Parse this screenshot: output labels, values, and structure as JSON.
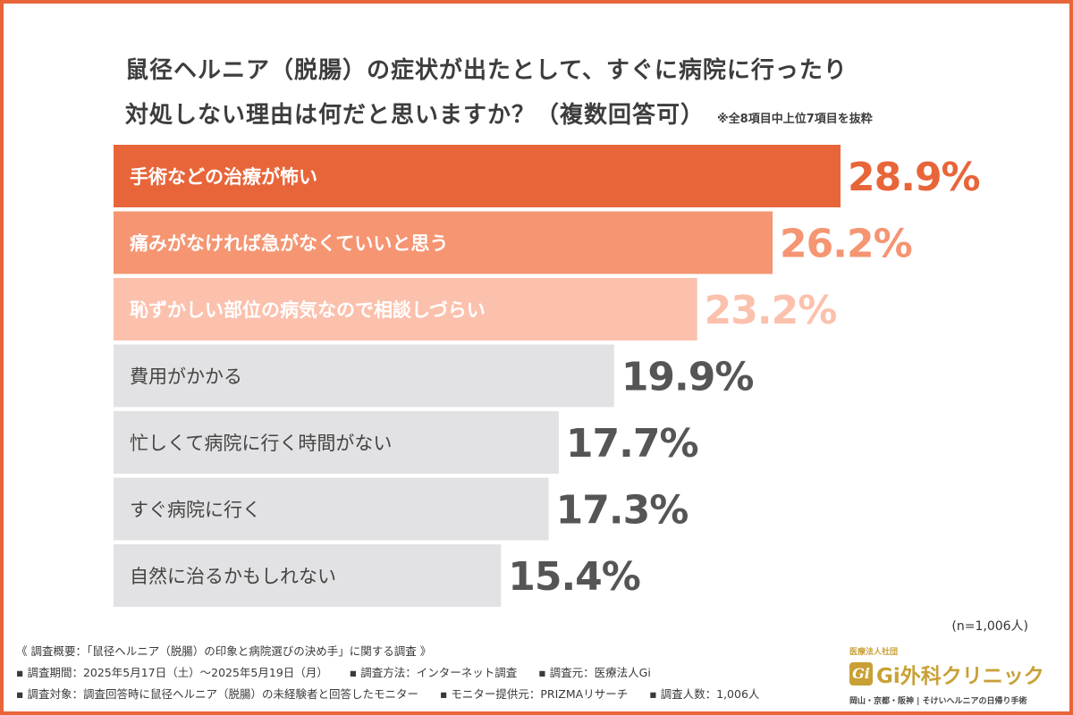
{
  "title": {
    "line1": "鼠径ヘルニア（脱腸）の症状が出たとして、すぐに病院に行ったり",
    "line2": "対処しない理由は何だと思いますか？（複数回答可）",
    "note": "※全8項目中上位7項目を抜粋"
  },
  "chart_data": {
    "type": "bar",
    "orientation": "horizontal",
    "categories": [
      "手術などの治療が怖い",
      "痛みがなければ急がなくていいと思う",
      "恥ずかしい部位の病気なので相談しづらい",
      "費用がかかる",
      "忙しくて病院に行く時間がない",
      "すぐ病院に行く",
      "自然に治るかもしれない"
    ],
    "values": [
      28.9,
      26.2,
      23.2,
      19.9,
      17.7,
      17.3,
      15.4
    ],
    "value_labels": [
      "28.9%",
      "26.2%",
      "23.2%",
      "19.9%",
      "17.7%",
      "17.3%",
      "15.4%"
    ],
    "bar_colors": [
      "#e8653a",
      "#f59572",
      "#fbc1ad",
      "#e2e2e4",
      "#e2e2e4",
      "#e2e2e4",
      "#e2e2e4"
    ],
    "label_colors": [
      "#ffffff",
      "#ffffff",
      "#ffffff",
      "#444444",
      "#444444",
      "#444444",
      "#444444"
    ],
    "value_colors": [
      "#e8653a",
      "#f59572",
      "#fbc1ad",
      "#555555",
      "#555555",
      "#555555",
      "#555555"
    ],
    "unit": "%"
  },
  "sample": "(n=1,006人)",
  "footer": {
    "line1": "《 調査概要：「鼠径ヘルニア（脱腸）の印象と病院選びの決め手」に関する調査 》",
    "period": "▪ 調査期間：2025年5月17日（土）〜2025年5月19日（月）",
    "method": "▪ 調査方法：インターネット調査",
    "source": "▪ 調査元：医療法人Gi",
    "target": "▪ 調査対象：調査回答時に鼠径ヘルニア（脱腸）の未経験者と回答したモニター",
    "provider": "▪ モニター提供元：PRIZMAリサーチ",
    "count": "▪ 調査人数：1,006人"
  },
  "logo": {
    "corp": "医療法人社団",
    "mark": "Gi",
    "name": "Gi外科クリニック",
    "tagline": "岡山・京都・阪神 | そけいヘルニアの日帰り手術"
  },
  "colors": {
    "accent": "#e8653a",
    "gold": "#c9a036"
  }
}
